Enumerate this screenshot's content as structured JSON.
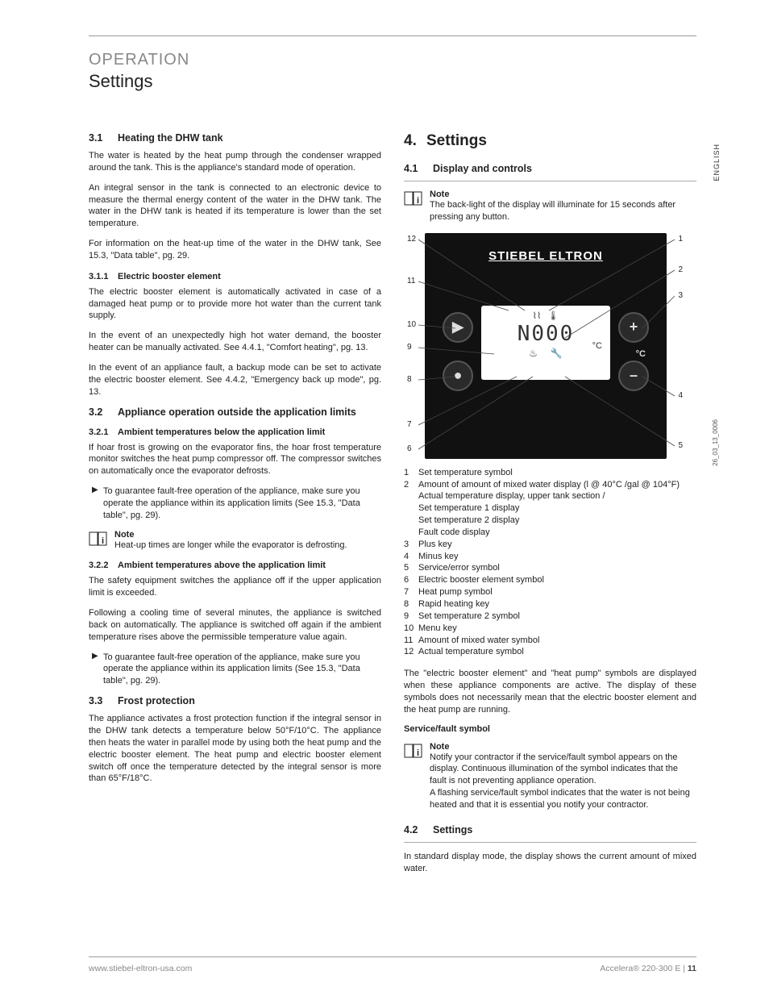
{
  "header": {
    "overline": "OPERATION",
    "title": "Settings"
  },
  "lang_tab": "ENGLISH",
  "fig_code": "26_03_13_0006",
  "left": {
    "s31_num": "3.1",
    "s31_title": "Heating the DHW tank",
    "s31_p1": "The water is heated by the heat pump through the condenser wrapped around the tank. This is the appliance's standard mode of operation.",
    "s31_p2": "An integral sensor in the tank is connected to an electronic device to measure the thermal energy content of the water in the DHW tank. The water in the DHW tank is heated if its temperature is lower than the set temperature.",
    "s31_p3": "For information on the heat-up time of the water in the DHW tank, See 15.3, \"Data table\", pg. 29.",
    "s311_num": "3.1.1",
    "s311_title": "Electric booster element",
    "s311_p1": "The electric booster element is automatically activated in case of a damaged heat pump or to provide more hot water than the current tank supply.",
    "s311_p2": "In the event of an unexpectedly high hot water demand, the booster heater can be manually activated. See 4.4.1, \"Comfort heating\", pg. 13.",
    "s311_p3": "In the event of an appliance fault, a backup mode can be set to activate the electric booster element. See 4.4.2, \"Emergency back up mode\", pg. 13.",
    "s32_num": "3.2",
    "s32_title": "Appliance operation outside the application limits",
    "s321_num": "3.2.1",
    "s321_title": "Ambient temperatures below the application limit",
    "s321_p1": "If hoar frost is growing on the evaporator fins, the hoar frost temperature monitor switches the heat pump compressor off. The compressor switches on automatically once the evaporator defrosts.",
    "s321_b1": "To guarantee fault-free operation of the appliance, make sure you operate the appliance within its application limits (See 15.3, \"Data table\", pg. 29).",
    "note1_title": "Note",
    "note1_text": "Heat-up times are longer while the evaporator is defrosting.",
    "s322_num": "3.2.2",
    "s322_title": "Ambient temperatures above the application limit",
    "s322_p1": "The safety equipment switches the appliance off if the upper application limit is exceeded.",
    "s322_p2": "Following a cooling time of several minutes, the appliance is switched back on automatically. The appliance is switched off again if the ambient temperature rises above the permissible temperature value again.",
    "s322_b1": "To guarantee fault-free operation of the appliance, make sure you operate the appliance within its application limits (See 15.3, \"Data table\", pg. 29).",
    "s33_num": "3.3",
    "s33_title": "Frost protection",
    "s33_p1": "The appliance activates a frost protection function if the integral sensor in the DHW tank detects a temperature below 50°F/10°C. The appliance then heats the water in parallel mode by using both the heat pump and the electric booster element. The heat pump and electric booster element switch off once the temperature detected by the integral sensor is more than 65°F/18°C."
  },
  "right": {
    "s4_num": "4.",
    "s4_title": "Settings",
    "s41_num": "4.1",
    "s41_title": "Display and controls",
    "note2_title": "Note",
    "note2_text": "The back-light of the display will illuminate for 15 seconds after pressing any button.",
    "panel": {
      "brand": "STIEBEL ELTRON",
      "screen_digits": "N000",
      "screen_unit": "°C",
      "unit_c_label": "°C",
      "btn_play": "▶",
      "btn_rec": "●",
      "btn_plus": "+",
      "btn_minus": "–",
      "icon_tap": "⌇⌇",
      "icon_temp": "🌡",
      "icon_heat": "♨",
      "icon_wrench": "🔧"
    },
    "callouts": {
      "c1": "1",
      "c2": "2",
      "c3": "3",
      "c4": "4",
      "c5": "5",
      "c6": "6",
      "c7": "7",
      "c8": "8",
      "c9": "9",
      "c10": "10",
      "c11": "11",
      "c12": "12"
    },
    "legend": [
      {
        "n": "1",
        "t": "Set temperature symbol"
      },
      {
        "n": "2",
        "t": "Amount of amount of mixed water display (l @ 40°C /gal @ 104°F)",
        "sub": [
          "Actual temperature display, upper tank section /",
          "Set temperature 1 display",
          "Set temperature 2 display",
          "Fault code display"
        ]
      },
      {
        "n": "3",
        "t": "Plus key"
      },
      {
        "n": "4",
        "t": "Minus key"
      },
      {
        "n": "5",
        "t": "Service/error symbol"
      },
      {
        "n": "6",
        "t": "Electric booster element symbol"
      },
      {
        "n": "7",
        "t": "Heat pump symbol"
      },
      {
        "n": "8",
        "t": "Rapid heating key"
      },
      {
        "n": "9",
        "t": "Set temperature 2 symbol"
      },
      {
        "n": "10",
        "t": "Menu key"
      },
      {
        "n": "11",
        "t": "Amount of mixed water symbol"
      },
      {
        "n": "12",
        "t": "Actual temperature symbol"
      }
    ],
    "after_legend_p": "The \"electric booster element\" and \"heat pump\" symbols are displayed when these appliance components are active. The display of these symbols does not necessarily mean that the electric booster element and the heat pump are running.",
    "sf_heading": "Service/fault symbol",
    "note3_title": "Note",
    "note3_text": "Notify your contractor if the service/fault symbol appears on the display. Continuous illumination of the symbol indicates that the fault is not preventing appliance operation.\nA flashing service/fault symbol indicates that the water is not being heated and that it is essential you notify your contractor.",
    "s42_num": "4.2",
    "s42_title": "Settings",
    "s42_p1": "In standard display mode, the display shows the current amount of mixed water."
  },
  "footer": {
    "left": "www.stiebel-eltron-usa.com",
    "right_product": "Accelera® 220-300 E",
    "right_sep": " | ",
    "right_page": "11"
  }
}
